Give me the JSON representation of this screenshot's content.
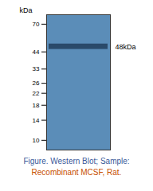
{
  "chart_data": {
    "type": "gel",
    "log": "y",
    "ylabel": "kDa",
    "ylim": [
      8.5,
      82
    ],
    "yticks": [
      10,
      14,
      18,
      22,
      26,
      33,
      44,
      70
    ],
    "values": [
      48
    ],
    "value_labels": [
      "48kDa"
    ],
    "color": "#2a4a6a",
    "tick_labels": "y",
    "grid": false,
    "annotations": [
      {
        "text": "Figure. Western Blot; Sample:",
        "color": "#3a5a9a"
      },
      {
        "text": "Recombinant MCSF, Rat.",
        "color": "#c85000"
      }
    ]
  }
}
